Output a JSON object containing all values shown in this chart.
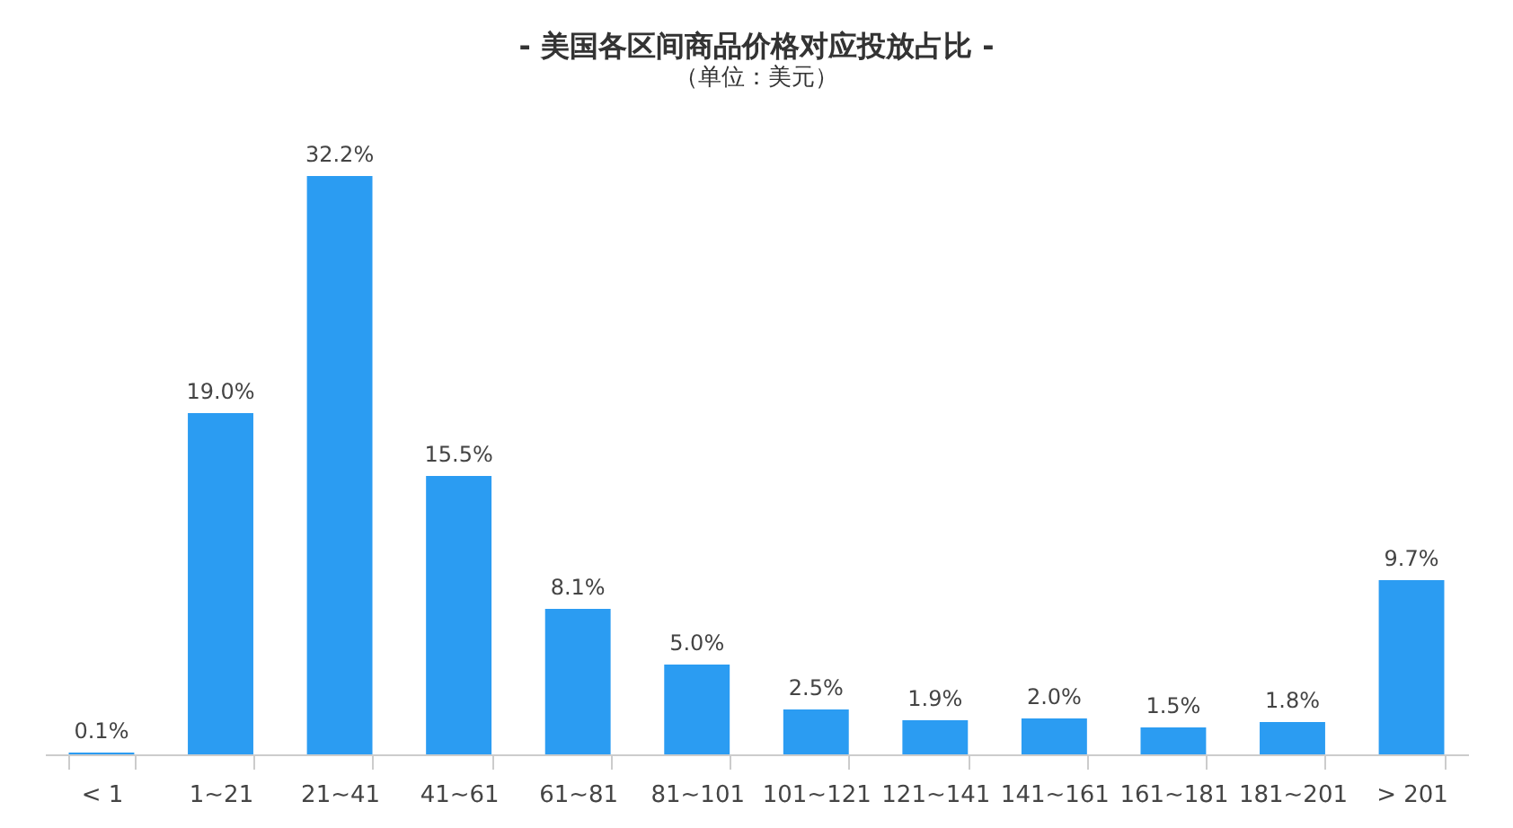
{
  "chart_data": {
    "type": "bar",
    "title": "- 美国各区间商品价格对应投放占比 -",
    "subtitle": "（单位：美元）",
    "categories": [
      "< 1",
      "1~21",
      "21~41",
      "41~61",
      "61~81",
      "81~101",
      "101~121",
      "121~141",
      "141~161",
      "161~181",
      "181~201",
      "> 201"
    ],
    "values": [
      0.1,
      19.0,
      32.2,
      15.5,
      8.1,
      5.0,
      2.5,
      1.9,
      2.0,
      1.5,
      1.8,
      9.7
    ],
    "value_labels": [
      "0.1%",
      "19.0%",
      "32.2%",
      "15.5%",
      "8.1%",
      "5.0%",
      "2.5%",
      "1.9%",
      "2.0%",
      "1.5%",
      "1.8%",
      "9.7%"
    ],
    "color": "#2b9cf2"
  }
}
